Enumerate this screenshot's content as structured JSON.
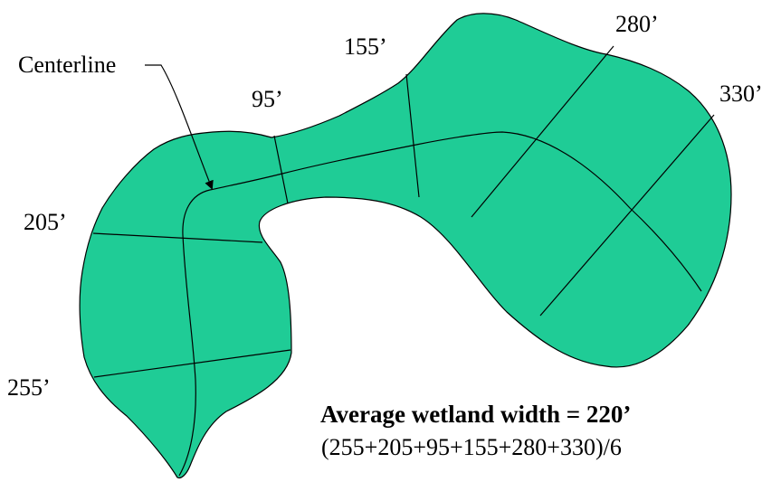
{
  "diagram": {
    "fill_color": "#1fcc96",
    "outline_color": "#000000",
    "centerline_label": "Centerline",
    "width_labels": [
      {
        "id": "w255",
        "text": "255’"
      },
      {
        "id": "w205",
        "text": "205’"
      },
      {
        "id": "w95",
        "text": "95’"
      },
      {
        "id": "w155",
        "text": "155’"
      },
      {
        "id": "w280",
        "text": "280’"
      },
      {
        "id": "w330",
        "text": "330’"
      }
    ],
    "formula": {
      "title": "Average wetland width = 220’",
      "expression": "(255+205+95+155+280+330)/6"
    }
  }
}
